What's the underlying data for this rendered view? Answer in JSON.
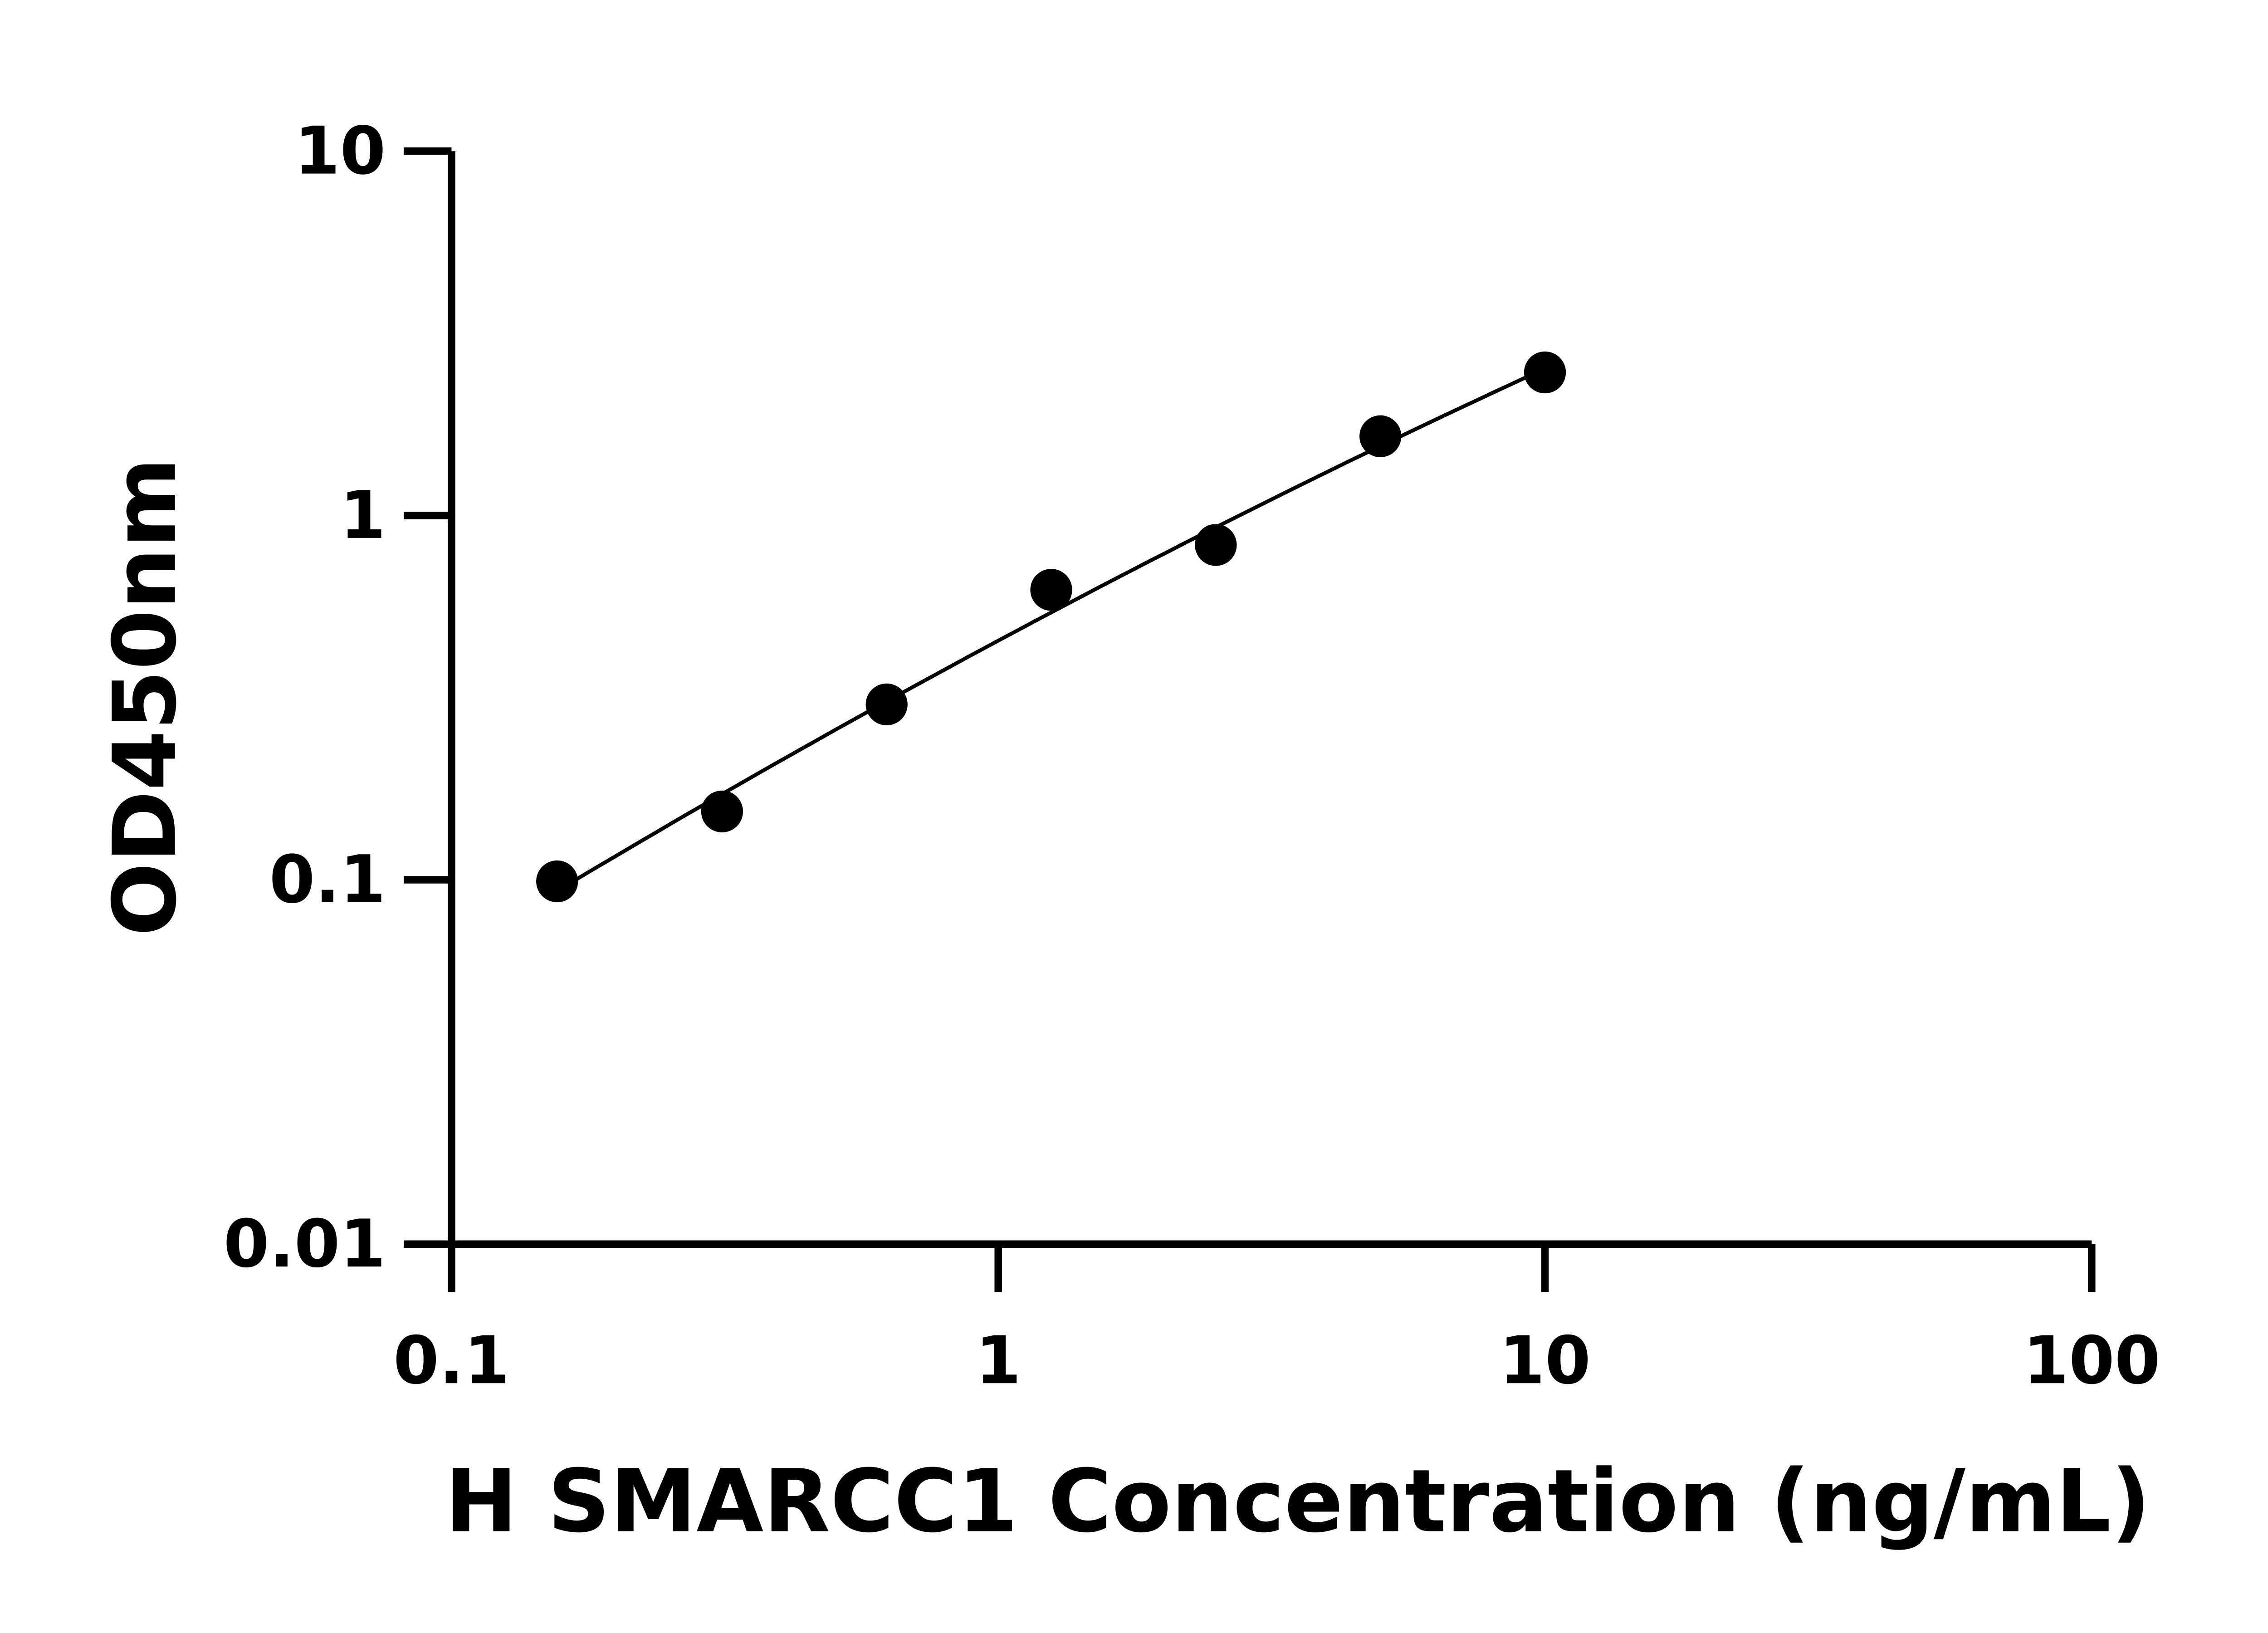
{
  "chart_data": {
    "type": "scatter",
    "title": "",
    "xlabel": "H SMARCC1 Concentration (ng/mL)",
    "ylabel": "OD450nm",
    "x_scale": "log",
    "y_scale": "log",
    "xlim": [
      0.1,
      100
    ],
    "ylim": [
      0.01,
      10
    ],
    "x_ticks": [
      "0.1",
      "1",
      "10",
      "100"
    ],
    "y_ticks": [
      "0.01",
      "0.1",
      "1",
      "10"
    ],
    "grid": false,
    "fit_line": true,
    "colors": {
      "points": "#000000",
      "line": "#000000"
    },
    "series": [
      {
        "x": [
          0.156,
          0.3125,
          0.625,
          1.25,
          2.5,
          5,
          10
        ],
        "y": [
          0.099,
          0.154,
          0.303,
          0.625,
          0.83,
          1.65,
          2.47
        ]
      }
    ]
  }
}
